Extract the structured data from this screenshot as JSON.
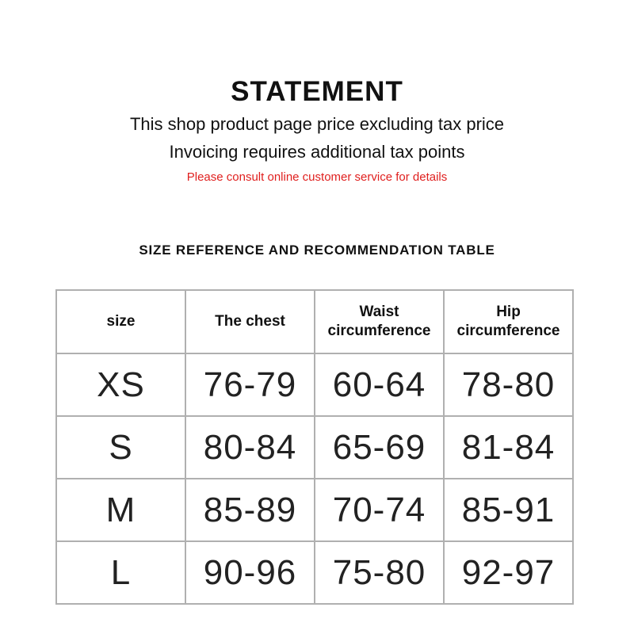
{
  "statement": {
    "title": "STATEMENT",
    "line1": "This shop product page price excluding tax price",
    "line2": "Invoicing requires additional tax points",
    "notice": "Please consult online customer service for details",
    "notice_color": "#e0201f"
  },
  "table": {
    "title": "SIZE REFERENCE AND RECOMMENDATION TABLE",
    "headers": [
      "size",
      "The chest",
      "Waist circumference",
      "Hip circumference"
    ],
    "rows": [
      [
        "XS",
        "76-79",
        "60-64",
        "78-80"
      ],
      [
        "S",
        "80-84",
        "65-69",
        "81-84"
      ],
      [
        "M",
        "85-89",
        "70-74",
        "85-91"
      ],
      [
        "L",
        "90-96",
        "75-80",
        "92-97"
      ]
    ]
  }
}
